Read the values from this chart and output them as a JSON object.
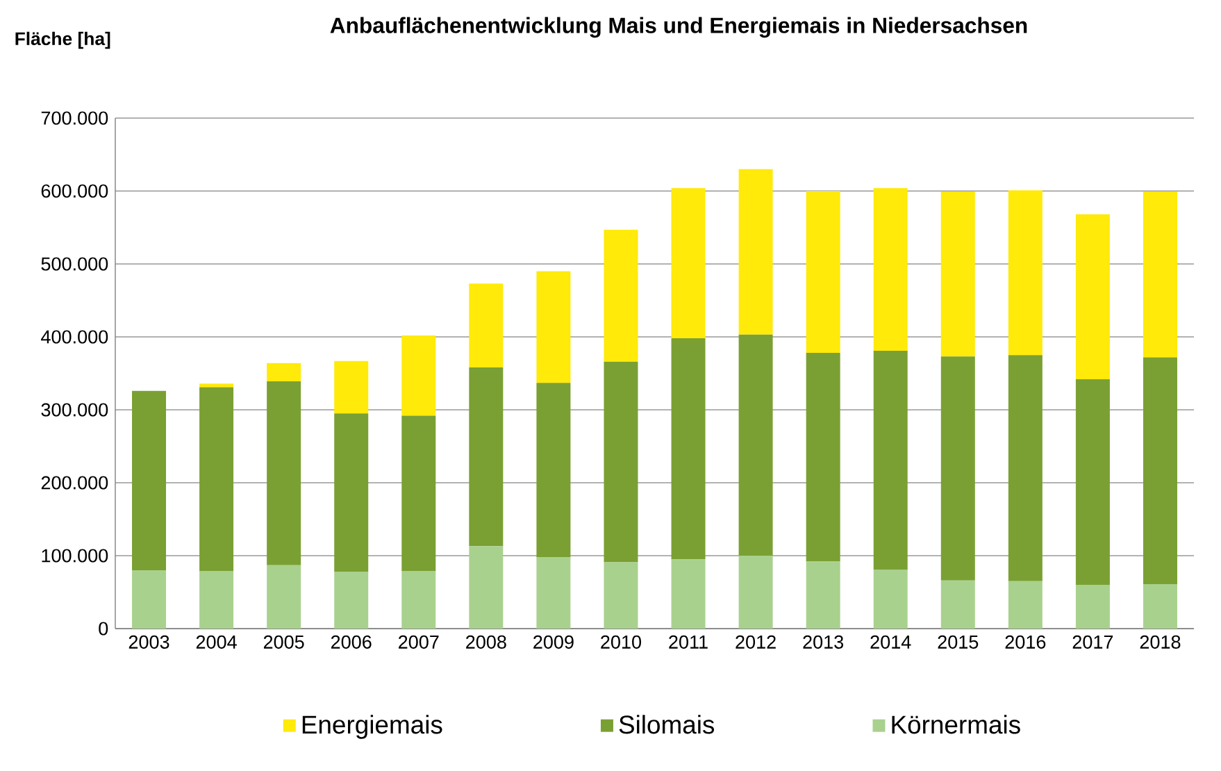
{
  "chart_data": {
    "type": "bar",
    "stacked": true,
    "title": "Anbauflächenentwicklung Mais und Energiemais in Niedersachsen",
    "ylabel": "Fläche [ha]",
    "categories": [
      "2003",
      "2004",
      "2005",
      "2006",
      "2007",
      "2008",
      "2009",
      "2010",
      "2011",
      "2012",
      "2013",
      "2014",
      "2015",
      "2016",
      "2017",
      "2018"
    ],
    "series": [
      {
        "name": "Körnermais",
        "color": "#a9d18e",
        "values": [
          80000,
          79000,
          87000,
          78000,
          79000,
          113000,
          98000,
          91000,
          95000,
          100000,
          92000,
          81000,
          66000,
          65000,
          60000,
          61000
        ]
      },
      {
        "name": "Silomais",
        "color": "#7aa033",
        "values": [
          246000,
          252000,
          252000,
          217000,
          213000,
          245000,
          239000,
          275000,
          303000,
          303000,
          286000,
          300000,
          307000,
          310000,
          282000,
          311000
        ]
      },
      {
        "name": "Energiemais",
        "color": "#ffea0a",
        "values": [
          0,
          5000,
          25000,
          72000,
          110000,
          115000,
          153000,
          181000,
          206000,
          227000,
          222000,
          223000,
          226000,
          226000,
          226000,
          227000
        ]
      }
    ],
    "ylim": [
      0,
      700000
    ],
    "yticks": [
      {
        "value": 0,
        "label": "0"
      },
      {
        "value": 100000,
        "label": "100.000"
      },
      {
        "value": 200000,
        "label": "200.000"
      },
      {
        "value": 300000,
        "label": "300.000"
      },
      {
        "value": 400000,
        "label": "400.000"
      },
      {
        "value": 500000,
        "label": "500.000"
      },
      {
        "value": 600000,
        "label": "600.000"
      },
      {
        "value": 700000,
        "label": "700.000"
      }
    ],
    "grid": "y",
    "legend": "bottom"
  }
}
